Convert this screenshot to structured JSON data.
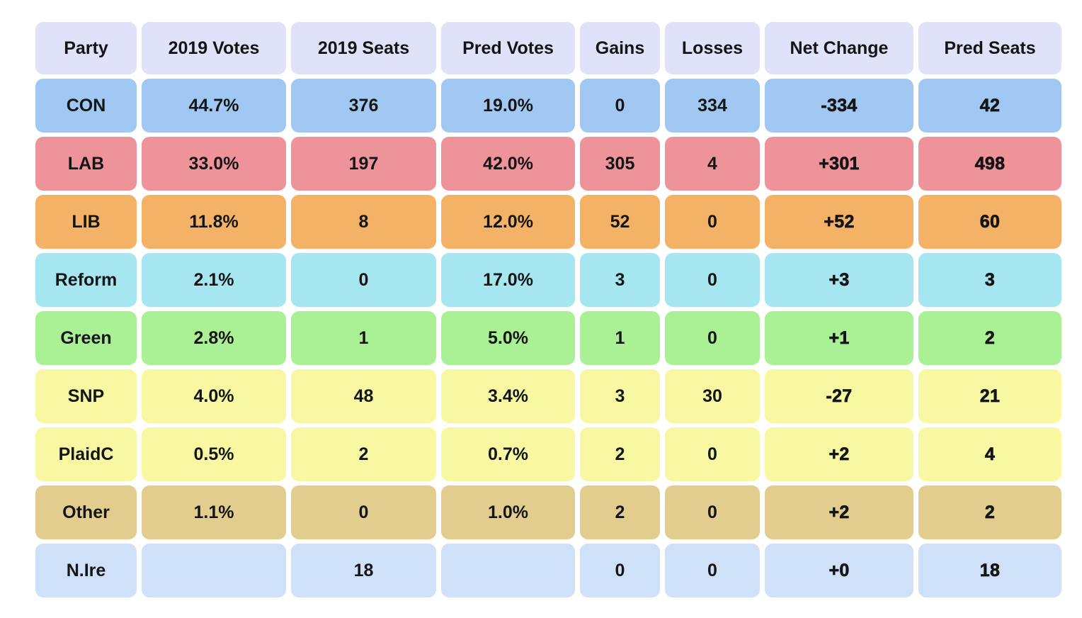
{
  "chart_data": {
    "type": "table",
    "columns": [
      "Party",
      "2019 Votes",
      "2019 Seats",
      "Pred Votes",
      "Gains",
      "Losses",
      "Net Change",
      "Pred Seats"
    ],
    "rows": [
      {
        "id": "con",
        "color": "#a0c8f2",
        "cells": [
          "CON",
          "44.7%",
          "376",
          "19.0%",
          "0",
          "334",
          "-334",
          "42"
        ]
      },
      {
        "id": "lab",
        "color": "#ef939b",
        "cells": [
          "LAB",
          "33.0%",
          "197",
          "42.0%",
          "305",
          "4",
          "+301",
          "498"
        ]
      },
      {
        "id": "lib",
        "color": "#f4b267",
        "cells": [
          "LIB",
          "11.8%",
          "8",
          "12.0%",
          "52",
          "0",
          "+52",
          "60"
        ]
      },
      {
        "id": "reform",
        "color": "#a5e6f0",
        "cells": [
          "Reform",
          "2.1%",
          "0",
          "17.0%",
          "3",
          "0",
          "+3",
          "3"
        ]
      },
      {
        "id": "green",
        "color": "#a9f194",
        "cells": [
          "Green",
          "2.8%",
          "1",
          "5.0%",
          "1",
          "0",
          "+1",
          "2"
        ]
      },
      {
        "id": "snp",
        "color": "#f8f7a2",
        "cells": [
          "SNP",
          "4.0%",
          "48",
          "3.4%",
          "3",
          "30",
          "-27",
          "21"
        ]
      },
      {
        "id": "plaidc",
        "color": "#f8f7a2",
        "cells": [
          "PlaidC",
          "0.5%",
          "2",
          "0.7%",
          "2",
          "0",
          "+2",
          "4"
        ]
      },
      {
        "id": "other",
        "color": "#e2cd8e",
        "cells": [
          "Other",
          "1.1%",
          "0",
          "1.0%",
          "2",
          "0",
          "+2",
          "2"
        ]
      },
      {
        "id": "nire",
        "color": "#cfe0f9",
        "cells": [
          "N.Ire",
          "",
          "18",
          "",
          "0",
          "0",
          "+0",
          "18"
        ]
      }
    ],
    "layout": {
      "legend": "none",
      "grid": "off"
    }
  },
  "style": {
    "header_bg": "#dfe2f8",
    "text_color": "#151515",
    "page_bg": "#ffffff"
  }
}
